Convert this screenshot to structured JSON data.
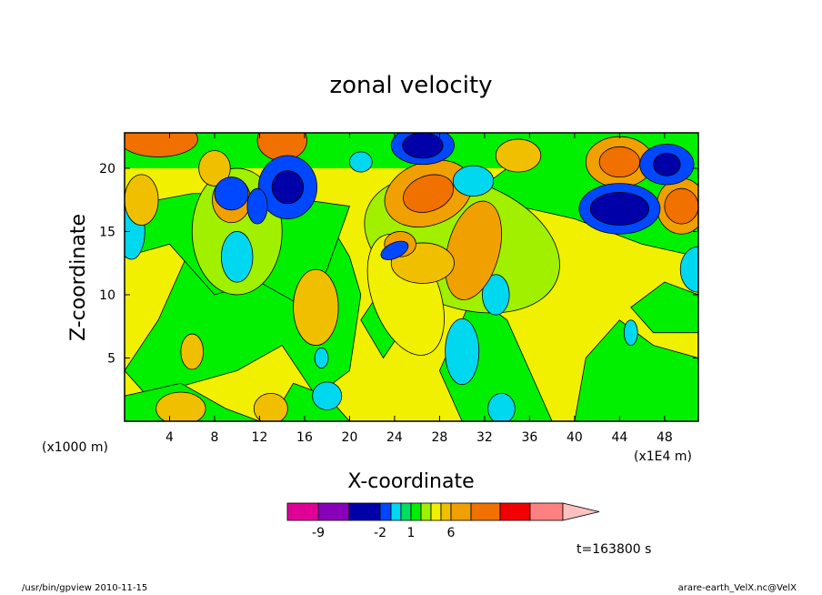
{
  "chart_data": {
    "type": "heatmap",
    "title": "zonal velocity",
    "xlabel": "X-coordinate",
    "ylabel": "Z-coordinate",
    "x_unit_left": "(x1000 m)",
    "x_unit_right": "(x1E4 m)",
    "xlim": [
      0,
      51
    ],
    "ylim": [
      0,
      22.8
    ],
    "x_ticks": [
      4,
      8,
      12,
      16,
      20,
      24,
      28,
      32,
      36,
      40,
      44,
      48
    ],
    "y_ticks": [
      5,
      10,
      15,
      20
    ],
    "grid": false,
    "contour_line_color": "#000000",
    "colorbar": {
      "levels": [
        "-9",
        "-2",
        "1",
        "6"
      ],
      "colors": [
        "#E00098",
        "#8800B8",
        "#0000A8",
        "#0048FF",
        "#00D8F0",
        "#00E060",
        "#00F000",
        "#A0F000",
        "#F0F000",
        "#F0C000",
        "#F0A000",
        "#F07000",
        "#F00000",
        "#FF8080",
        "#FFC0C0"
      ]
    },
    "field": {
      "background_level": "weak positive (~0 to 1)",
      "features": [
        {
          "x": 9.5,
          "z": 18.0,
          "level": "negative"
        },
        {
          "x": 14.5,
          "z": 18.0,
          "level": "strong negative"
        },
        {
          "x": 26.5,
          "z": 21.5,
          "level": "strong negative"
        },
        {
          "x": 44.0,
          "z": 16.8,
          "level": "strong negative"
        },
        {
          "x": 48.0,
          "z": 20.5,
          "level": "strong negative"
        },
        {
          "x": 3.0,
          "z": 22.0,
          "level": "positive"
        },
        {
          "x": 14.0,
          "z": 22.0,
          "level": "positive"
        },
        {
          "x": 44.0,
          "z": 20.5,
          "level": "positive"
        },
        {
          "x": 49.0,
          "z": 17.0,
          "level": "positive"
        },
        {
          "x": 31.0,
          "z": 13.5,
          "level": "positive"
        },
        {
          "x": 27.0,
          "z": 18.0,
          "level": "positive"
        },
        {
          "x": 9.5,
          "z": 13.0,
          "level": "weak negative"
        },
        {
          "x": 30.0,
          "z": 5.5,
          "level": "weak negative"
        }
      ]
    }
  },
  "annotation": {
    "time_label": "t=163800 s"
  },
  "footer": {
    "left": "/usr/bin/gpview   2010-11-15",
    "right": "arare-earth_VelX.nc@VelX"
  }
}
